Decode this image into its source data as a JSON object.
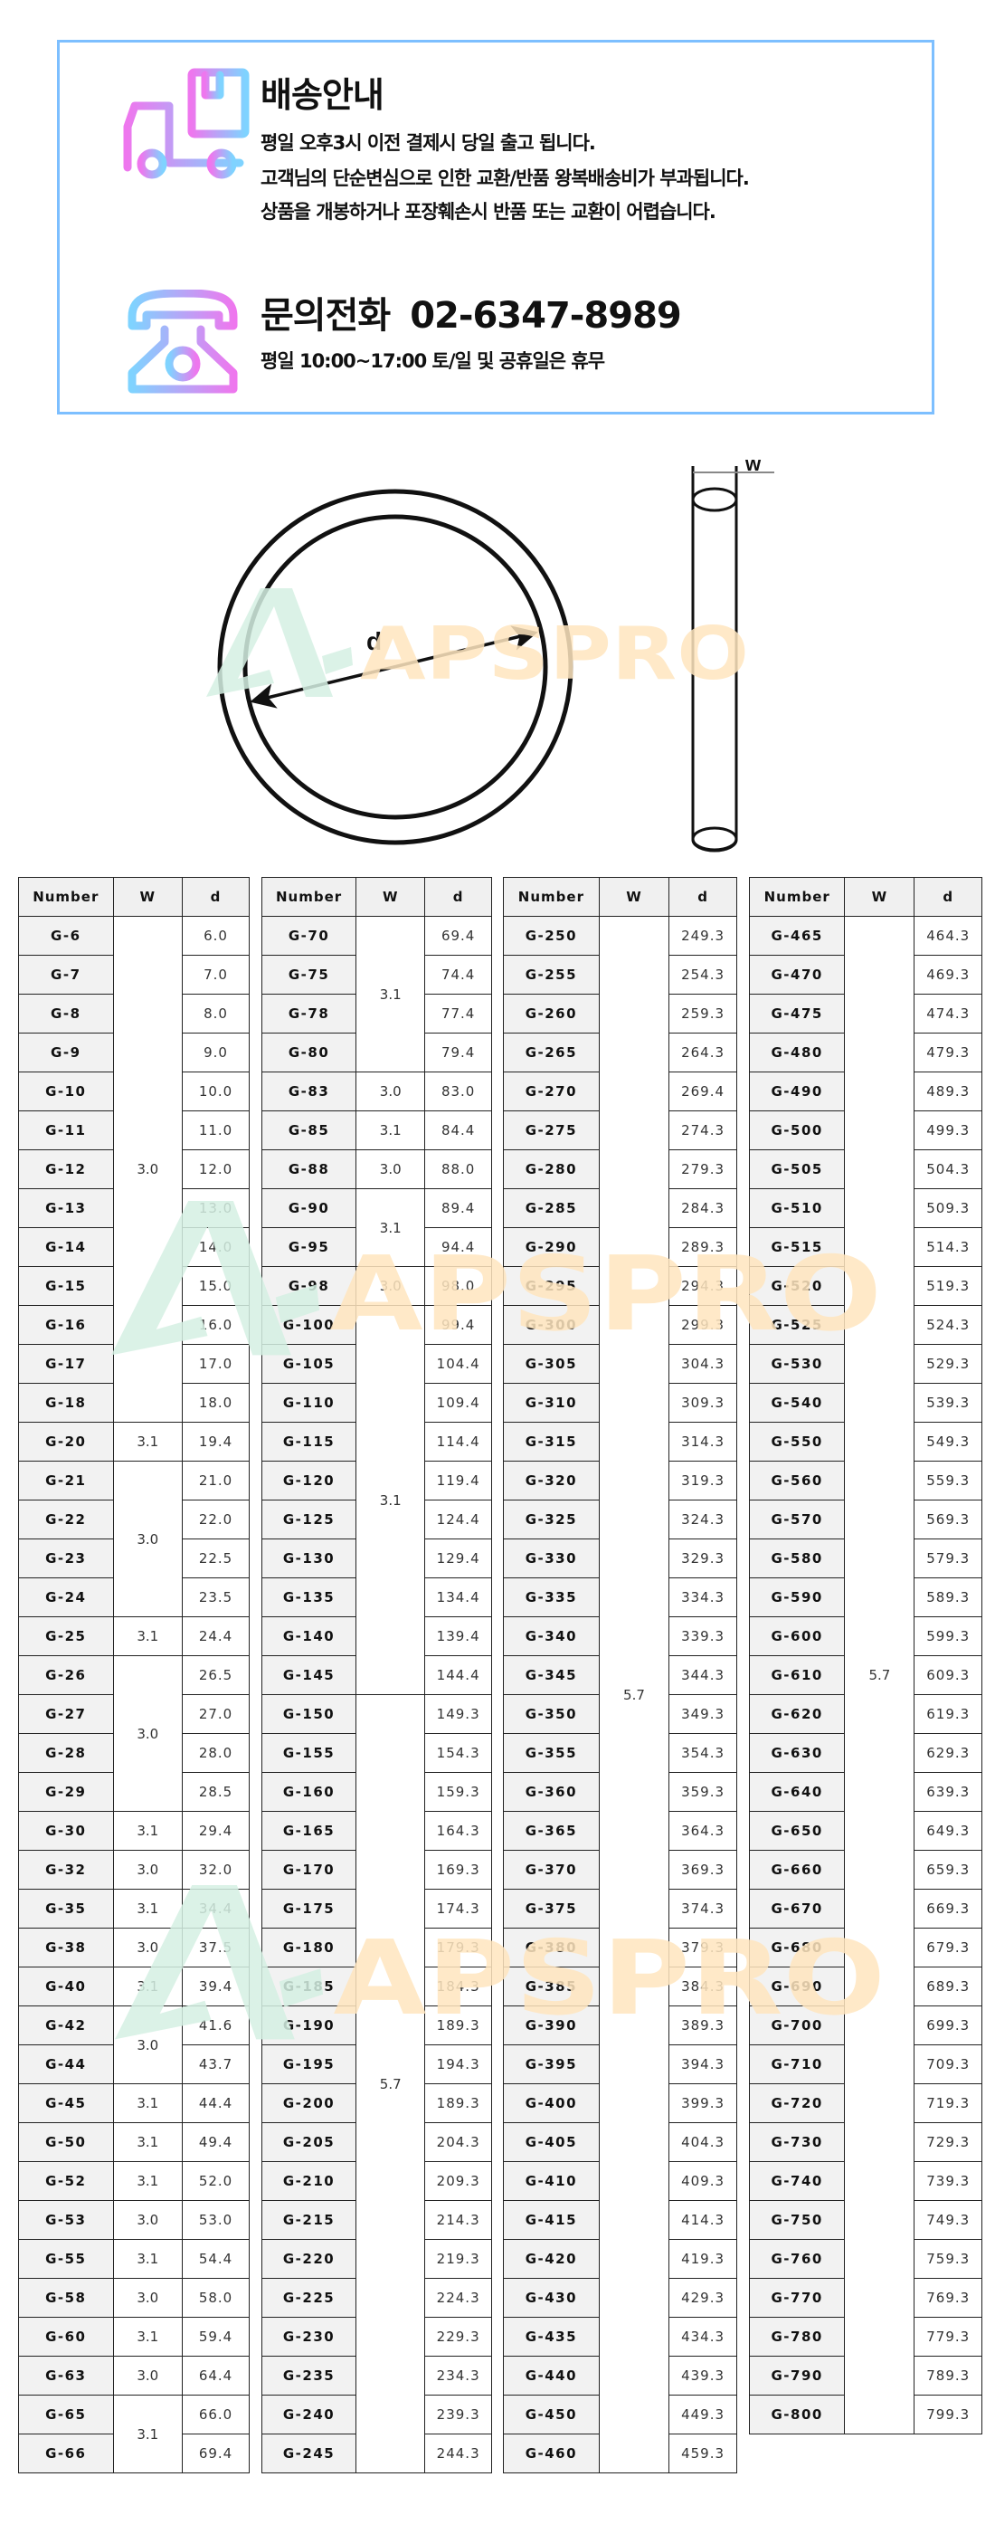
{
  "shipping": {
    "title": "배송안내",
    "lines": [
      "평일 오후3시 이전 결제시 당일 출고 됩니다.",
      "고객님의 단순변심으로 인한 교환/반품 왕복배송비가 부과됩니다.",
      "상품을 개봉하거나 포장훼손시 반품 또는 교환이 어렵습니다."
    ],
    "icon": "truck-icon"
  },
  "contact": {
    "title": "문의전화",
    "phone": "02-6347-8989",
    "hours": "평일 10:00~17:00 토/일 및 공휴일은 휴무",
    "icon": "telephone-icon"
  },
  "diagram": {
    "d_label": "d",
    "w_label": "w"
  },
  "watermark": {
    "text": "APSPRO",
    "logo_color": "#d5f0e3",
    "text_color": "#ffe6bf"
  },
  "colors": {
    "border": "#7dbfff",
    "gradient_start": "#ee77ee",
    "gradient_end": "#7fd3ff"
  },
  "headers": [
    "Number",
    "W",
    "d"
  ],
  "tables": [
    {
      "groups": [
        {
          "w": "3.0",
          "rows": [
            [
              "G-6",
              "6.0"
            ],
            [
              "G-7",
              "7.0"
            ],
            [
              "G-8",
              "8.0"
            ],
            [
              "G-9",
              "9.0"
            ],
            [
              "G-10",
              "10.0"
            ],
            [
              "G-11",
              "11.0"
            ],
            [
              "G-12",
              "12.0"
            ],
            [
              "G-13",
              "13.0"
            ],
            [
              "G-14",
              "14.0"
            ],
            [
              "G-15",
              "15.0"
            ],
            [
              "G-16",
              "16.0"
            ],
            [
              "G-17",
              "17.0"
            ],
            [
              "G-18",
              "18.0"
            ]
          ]
        },
        {
          "w": "3.1",
          "rows": [
            [
              "G-20",
              "19.4"
            ]
          ]
        },
        {
          "w": "3.0",
          "rows": [
            [
              "G-21",
              "21.0"
            ],
            [
              "G-22",
              "22.0"
            ],
            [
              "G-23",
              "22.5"
            ],
            [
              "G-24",
              "23.5"
            ]
          ]
        },
        {
          "w": "3.1",
          "rows": [
            [
              "G-25",
              "24.4"
            ]
          ]
        },
        {
          "w": "3.0",
          "rows": [
            [
              "G-26",
              "26.5"
            ],
            [
              "G-27",
              "27.0"
            ],
            [
              "G-28",
              "28.0"
            ],
            [
              "G-29",
              "28.5"
            ]
          ]
        },
        {
          "w": "3.1",
          "rows": [
            [
              "G-30",
              "29.4"
            ]
          ]
        },
        {
          "w": "3.0",
          "rows": [
            [
              "G-32",
              "32.0"
            ]
          ]
        },
        {
          "w": "3.1",
          "rows": [
            [
              "G-35",
              "34.4"
            ]
          ]
        },
        {
          "w": "3.0",
          "rows": [
            [
              "G-38",
              "37.5"
            ]
          ]
        },
        {
          "w": "3.1",
          "rows": [
            [
              "G-40",
              "39.4"
            ]
          ]
        },
        {
          "w": "3.0",
          "rows": [
            [
              "G-42",
              "41.6"
            ],
            [
              "G-44",
              "43.7"
            ]
          ]
        },
        {
          "w": "3.1",
          "rows": [
            [
              "G-45",
              "44.4"
            ]
          ]
        },
        {
          "w": "3.1",
          "rows": [
            [
              "G-50",
              "49.4"
            ]
          ]
        },
        {
          "w": "3.1",
          "rows": [
            [
              "G-52",
              "52.0"
            ]
          ]
        },
        {
          "w": "3.0",
          "rows": [
            [
              "G-53",
              "53.0"
            ]
          ]
        },
        {
          "w": "3.1",
          "rows": [
            [
              "G-55",
              "54.4"
            ]
          ]
        },
        {
          "w": "3.0",
          "rows": [
            [
              "G-58",
              "58.0"
            ]
          ]
        },
        {
          "w": "3.1",
          "rows": [
            [
              "G-60",
              "59.4"
            ]
          ]
        },
        {
          "w": "3.0",
          "rows": [
            [
              "G-63",
              "64.4"
            ]
          ]
        },
        {
          "w": "3.1",
          "rows": [
            [
              "G-65",
              "66.0"
            ],
            [
              "G-66",
              "69.4"
            ]
          ]
        }
      ]
    },
    {
      "groups": [
        {
          "w": "3.1",
          "rows": [
            [
              "G-70",
              "69.4"
            ],
            [
              "G-75",
              "74.4"
            ],
            [
              "G-78",
              "77.4"
            ],
            [
              "G-80",
              "79.4"
            ]
          ]
        },
        {
          "w": "3.0",
          "rows": [
            [
              "G-83",
              "83.0"
            ]
          ]
        },
        {
          "w": "3.1",
          "rows": [
            [
              "G-85",
              "84.4"
            ]
          ]
        },
        {
          "w": "3.0",
          "rows": [
            [
              "G-88",
              "88.0"
            ]
          ]
        },
        {
          "w": "3.1",
          "rows": [
            [
              "G-90",
              "89.4"
            ],
            [
              "G-95",
              "94.4"
            ]
          ]
        },
        {
          "w": "3.0",
          "rows": [
            [
              "G-98",
              "98.0"
            ]
          ]
        },
        {
          "w": "3.1",
          "rows": [
            [
              "G-100",
              "99.4"
            ],
            [
              "G-105",
              "104.4"
            ],
            [
              "G-110",
              "109.4"
            ],
            [
              "G-115",
              "114.4"
            ],
            [
              "G-120",
              "119.4"
            ],
            [
              "G-125",
              "124.4"
            ],
            [
              "G-130",
              "129.4"
            ],
            [
              "G-135",
              "134.4"
            ],
            [
              "G-140",
              "139.4"
            ],
            [
              "G-145",
              "144.4"
            ]
          ]
        },
        {
          "w": "5.7",
          "rows": [
            [
              "G-150",
              "149.3"
            ],
            [
              "G-155",
              "154.3"
            ],
            [
              "G-160",
              "159.3"
            ],
            [
              "G-165",
              "164.3"
            ],
            [
              "G-170",
              "169.3"
            ],
            [
              "G-175",
              "174.3"
            ],
            [
              "G-180",
              "179.3"
            ],
            [
              "G-185",
              "184.3"
            ],
            [
              "G-190",
              "189.3"
            ],
            [
              "G-195",
              "194.3"
            ],
            [
              "G-200",
              "189.3"
            ],
            [
              "G-205",
              "204.3"
            ],
            [
              "G-210",
              "209.3"
            ],
            [
              "G-215",
              "214.3"
            ],
            [
              "G-220",
              "219.3"
            ],
            [
              "G-225",
              "224.3"
            ],
            [
              "G-230",
              "229.3"
            ],
            [
              "G-235",
              "234.3"
            ],
            [
              "G-240",
              "239.3"
            ],
            [
              "G-245",
              "244.3"
            ]
          ]
        }
      ]
    },
    {
      "groups": [
        {
          "w": "5.7",
          "rows": [
            [
              "G-250",
              "249.3"
            ],
            [
              "G-255",
              "254.3"
            ],
            [
              "G-260",
              "259.3"
            ],
            [
              "G-265",
              "264.3"
            ],
            [
              "G-270",
              "269.4"
            ],
            [
              "G-275",
              "274.3"
            ],
            [
              "G-280",
              "279.3"
            ],
            [
              "G-285",
              "284.3"
            ],
            [
              "G-290",
              "289.3"
            ],
            [
              "G-295",
              "294.3"
            ],
            [
              "G-300",
              "299.3"
            ],
            [
              "G-305",
              "304.3"
            ],
            [
              "G-310",
              "309.3"
            ],
            [
              "G-315",
              "314.3"
            ],
            [
              "G-320",
              "319.3"
            ],
            [
              "G-325",
              "324.3"
            ],
            [
              "G-330",
              "329.3"
            ],
            [
              "G-335",
              "334.3"
            ],
            [
              "G-340",
              "339.3"
            ],
            [
              "G-345",
              "344.3"
            ],
            [
              "G-350",
              "349.3"
            ],
            [
              "G-355",
              "354.3"
            ],
            [
              "G-360",
              "359.3"
            ],
            [
              "G-365",
              "364.3"
            ],
            [
              "G-370",
              "369.3"
            ],
            [
              "G-375",
              "374.3"
            ],
            [
              "G-380",
              "379.3"
            ],
            [
              "G-385",
              "384.3"
            ],
            [
              "G-390",
              "389.3"
            ],
            [
              "G-395",
              "394.3"
            ],
            [
              "G-400",
              "399.3"
            ],
            [
              "G-405",
              "404.3"
            ],
            [
              "G-410",
              "409.3"
            ],
            [
              "G-415",
              "414.3"
            ],
            [
              "G-420",
              "419.3"
            ],
            [
              "G-430",
              "429.3"
            ],
            [
              "G-435",
              "434.3"
            ],
            [
              "G-440",
              "439.3"
            ],
            [
              "G-450",
              "449.3"
            ],
            [
              "G-460",
              "459.3"
            ]
          ]
        }
      ]
    },
    {
      "groups": [
        {
          "w": "5.7",
          "rows": [
            [
              "G-465",
              "464.3"
            ],
            [
              "G-470",
              "469.3"
            ],
            [
              "G-475",
              "474.3"
            ],
            [
              "G-480",
              "479.3"
            ],
            [
              "G-490",
              "489.3"
            ],
            [
              "G-500",
              "499.3"
            ],
            [
              "G-505",
              "504.3"
            ],
            [
              "G-510",
              "509.3"
            ],
            [
              "G-515",
              "514.3"
            ],
            [
              "G-520",
              "519.3"
            ],
            [
              "G-525",
              "524.3"
            ],
            [
              "G-530",
              "529.3"
            ],
            [
              "G-540",
              "539.3"
            ],
            [
              "G-550",
              "549.3"
            ],
            [
              "G-560",
              "559.3"
            ],
            [
              "G-570",
              "569.3"
            ],
            [
              "G-580",
              "579.3"
            ],
            [
              "G-590",
              "589.3"
            ],
            [
              "G-600",
              "599.3"
            ],
            [
              "G-610",
              "609.3"
            ],
            [
              "G-620",
              "619.3"
            ],
            [
              "G-630",
              "629.3"
            ],
            [
              "G-640",
              "639.3"
            ],
            [
              "G-650",
              "649.3"
            ],
            [
              "G-660",
              "659.3"
            ],
            [
              "G-670",
              "669.3"
            ],
            [
              "G-680",
              "679.3"
            ],
            [
              "G-690",
              "689.3"
            ],
            [
              "G-700",
              "699.3"
            ],
            [
              "G-710",
              "709.3"
            ],
            [
              "G-720",
              "719.3"
            ],
            [
              "G-730",
              "729.3"
            ],
            [
              "G-740",
              "739.3"
            ],
            [
              "G-750",
              "749.3"
            ],
            [
              "G-760",
              "759.3"
            ],
            [
              "G-770",
              "769.3"
            ],
            [
              "G-780",
              "779.3"
            ],
            [
              "G-790",
              "789.3"
            ],
            [
              "G-800",
              "799.3"
            ]
          ]
        }
      ]
    }
  ]
}
